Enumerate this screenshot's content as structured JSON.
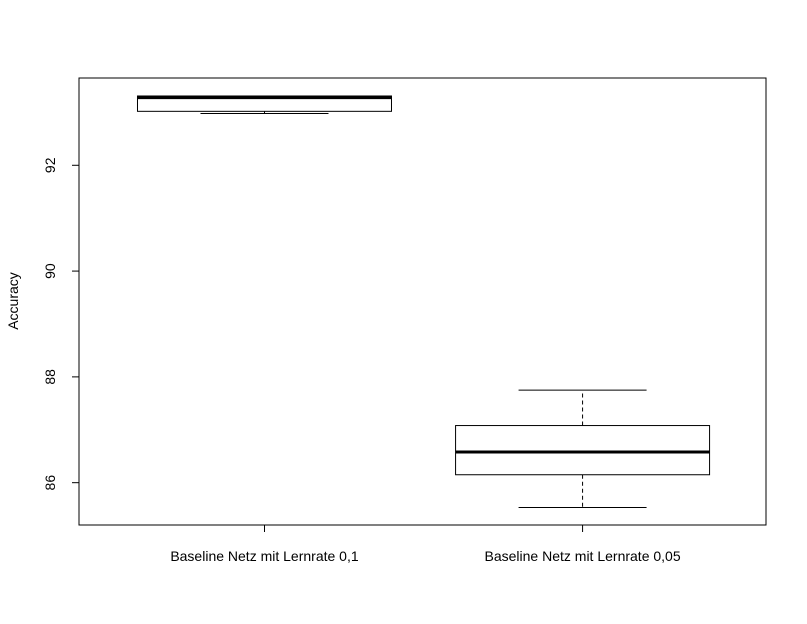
{
  "chart_data": {
    "type": "boxplot",
    "title": "",
    "xlabel": "",
    "ylabel": "Accuracy",
    "ylim": [
      85.2,
      93.65
    ],
    "yticks": [
      86,
      88,
      90,
      92
    ],
    "y_tick_labels": [
      "86",
      "88",
      "90",
      "92"
    ],
    "grid": false,
    "categories": [
      "Baseline Netz mit Lernrate 0,1",
      "Baseline Netz mit Lernrate 0,05"
    ],
    "boxes": [
      {
        "category": "Baseline Netz mit Lernrate 0,1",
        "whisker_low": 92.98,
        "q1": 93.02,
        "median": 93.28,
        "q3": 93.31,
        "whisker_high": 93.31
      },
      {
        "category": "Baseline Netz mit Lernrate 0,05",
        "whisker_low": 85.53,
        "q1": 86.15,
        "median": 86.58,
        "q3": 87.08,
        "whisker_high": 87.75
      }
    ]
  }
}
